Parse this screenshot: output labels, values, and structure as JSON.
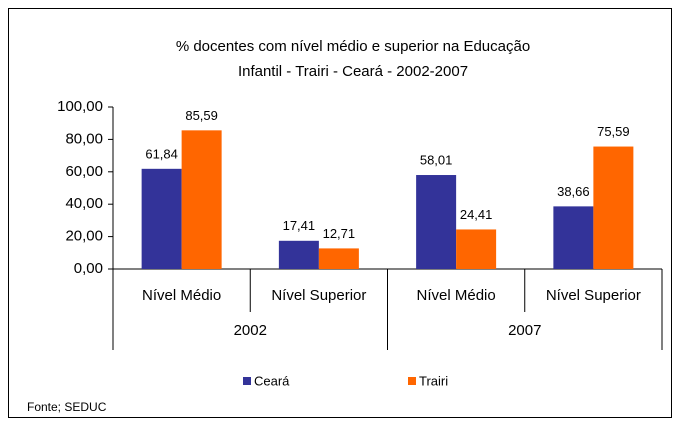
{
  "chart_data": {
    "type": "bar",
    "title": [
      "% docentes com nível médio e superior na Educação",
      "Infantil - Trairi - Ceará - 2002-2007"
    ],
    "categories": [
      "Nível Médio",
      "Nível Superior",
      "Nível Médio",
      "Nível Superior"
    ],
    "group_labels": [
      "2002",
      "2007"
    ],
    "series": [
      {
        "name": "Ceará",
        "color": "#333399",
        "values": [
          61.84,
          17.41,
          58.01,
          38.66
        ],
        "value_labels": [
          "61,84",
          "17,41",
          "58,01",
          "38,66"
        ]
      },
      {
        "name": "Trairi",
        "color": "#ff6600",
        "values": [
          85.59,
          12.71,
          24.41,
          75.59
        ],
        "value_labels": [
          "85,59",
          "12,71",
          "24,41",
          "75,59"
        ]
      }
    ],
    "ylim": [
      0,
      100
    ],
    "yticks": [
      {
        "value": 0,
        "label": "0,00"
      },
      {
        "value": 20,
        "label": "20,00"
      },
      {
        "value": 40,
        "label": "40,00"
      },
      {
        "value": 60,
        "label": "60,00"
      },
      {
        "value": 80,
        "label": "80,00"
      },
      {
        "value": 100,
        "label": "100,00"
      }
    ],
    "source": "Fonte; SEDUC"
  }
}
